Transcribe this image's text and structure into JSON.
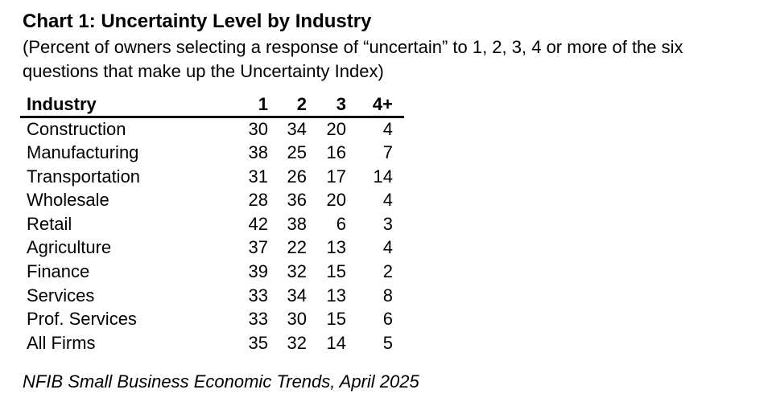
{
  "page": {
    "title": "Chart 1: Uncertainty Level by Industry",
    "subtitle": "(Percent of owners selecting a response of “uncertain” to 1, 2, 3, 4 or more of the six questions that make up the Uncertainty Index)",
    "footer": "NFIB Small Business Economic Trends, April 2025"
  },
  "colors": {
    "text": "#000000",
    "background": "#ffffff",
    "rule": "#000000"
  },
  "chart_data": {
    "type": "table",
    "title": "Chart 1: Uncertainty Level by Industry",
    "subtitle": "(Percent of owners selecting a response of “uncertain” to 1, 2, 3, 4 or more of the six questions that make up the Uncertainty Index)",
    "source_note": "NFIB Small Business Economic Trends, April 2025",
    "columns": [
      "Industry",
      "1",
      "2",
      "3",
      "4+"
    ],
    "rows": [
      {
        "industry": "Construction",
        "values": [
          30,
          34,
          20,
          4
        ]
      },
      {
        "industry": "Manufacturing",
        "values": [
          38,
          25,
          16,
          7
        ]
      },
      {
        "industry": "Transportation",
        "values": [
          31,
          26,
          17,
          14
        ]
      },
      {
        "industry": "Wholesale",
        "values": [
          28,
          36,
          20,
          4
        ]
      },
      {
        "industry": "Retail",
        "values": [
          42,
          38,
          6,
          3
        ]
      },
      {
        "industry": "Agriculture",
        "values": [
          37,
          22,
          13,
          4
        ]
      },
      {
        "industry": "Finance",
        "values": [
          39,
          32,
          15,
          2
        ]
      },
      {
        "industry": "Services",
        "values": [
          33,
          34,
          13,
          8
        ]
      },
      {
        "industry": "Prof. Services",
        "values": [
          33,
          30,
          15,
          6
        ]
      },
      {
        "industry": "All Firms",
        "values": [
          35,
          32,
          14,
          5
        ]
      }
    ]
  }
}
